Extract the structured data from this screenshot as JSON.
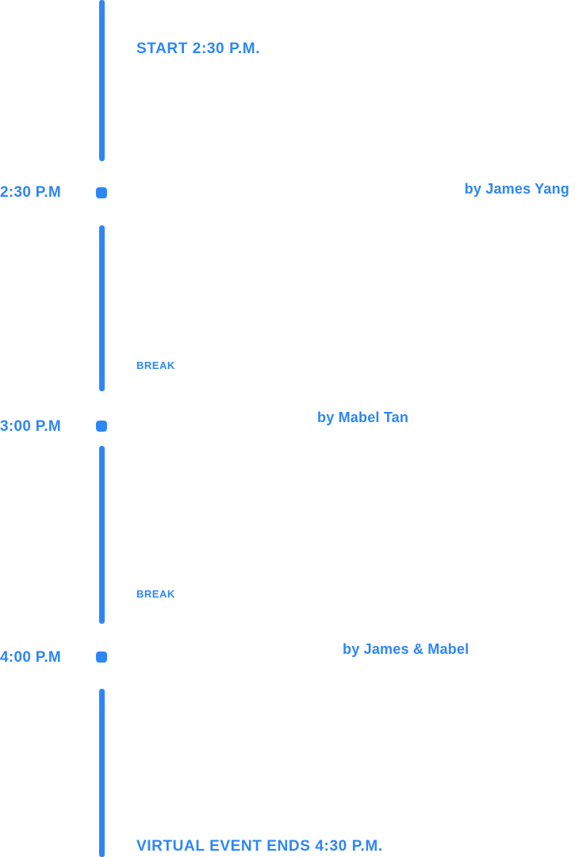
{
  "colors": {
    "accent": "#2E86F6",
    "background": "#FFFFFF"
  },
  "header": {
    "start_label": "START 2:30 P.M."
  },
  "footer": {
    "end_label": "VIRTUAL EVENT ENDS 4:30 P.M."
  },
  "timeline": {
    "entries": [
      {
        "time": "2:30 P.M",
        "speaker": "by James Yang",
        "note": ""
      },
      {
        "time": "3:00 P.M",
        "speaker": "by Mabel Tan",
        "note": "BREAK"
      },
      {
        "time": "4:00 P.M",
        "speaker": "by James & Mabel",
        "note": "BREAK"
      }
    ]
  }
}
